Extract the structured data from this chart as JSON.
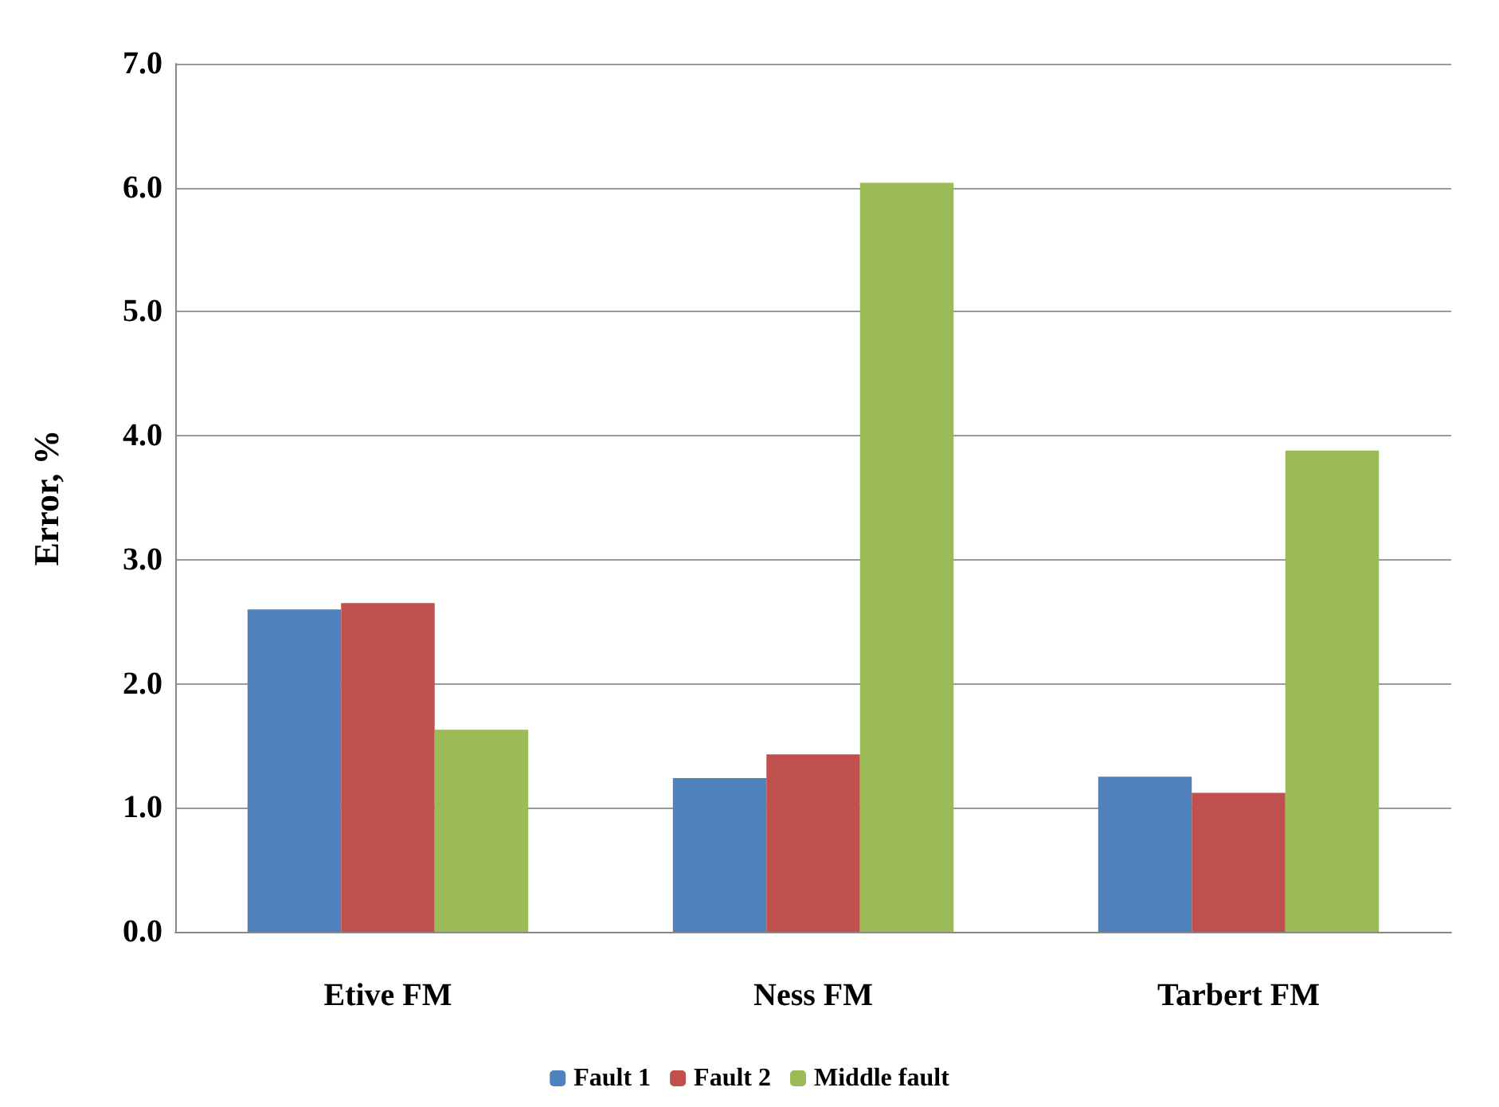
{
  "chart_data": {
    "type": "bar",
    "ylabel": "Error, %",
    "categories": [
      "Etive FM",
      "Ness FM",
      "Tarbert FM"
    ],
    "series": [
      {
        "name": "Fault 1",
        "color": "#4f81bd",
        "values": [
          2.6,
          1.24,
          1.25
        ]
      },
      {
        "name": "Fault 2",
        "color": "#c0504d",
        "values": [
          2.65,
          1.43,
          1.12
        ]
      },
      {
        "name": "Middle fault",
        "color": "#9bbb59",
        "values": [
          1.63,
          6.04,
          3.88
        ]
      }
    ],
    "ylim": [
      0,
      7
    ],
    "yticks": [
      {
        "value": 0,
        "label": "0.0"
      },
      {
        "value": 1,
        "label": "1.0"
      },
      {
        "value": 2,
        "label": "2.0"
      },
      {
        "value": 3,
        "label": "3.0"
      },
      {
        "value": 4,
        "label": "4.0"
      },
      {
        "value": 5,
        "label": "5.0"
      },
      {
        "value": 6,
        "label": "6.0"
      },
      {
        "value": 7,
        "label": "7.0"
      }
    ],
    "grid": "y",
    "legend": "bottom"
  }
}
